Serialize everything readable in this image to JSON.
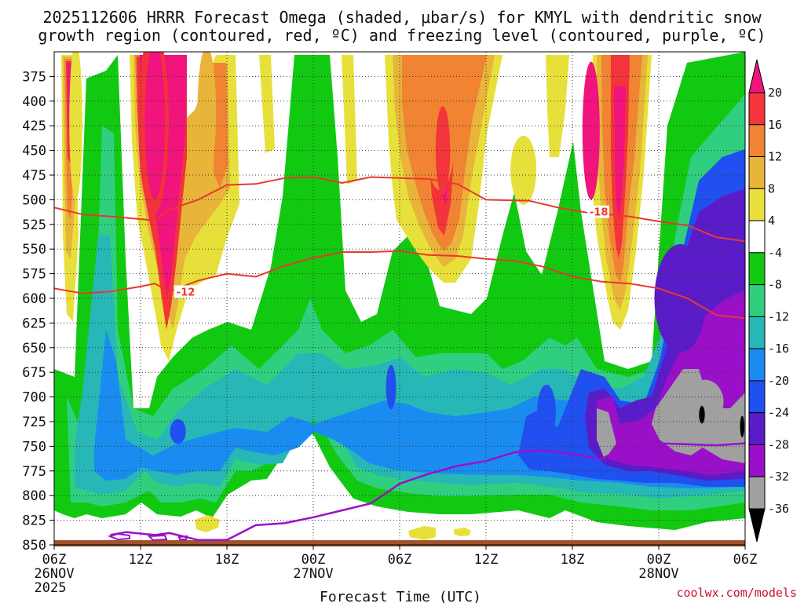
{
  "chart_data": {
    "type": "heatmap",
    "title_line1": "2025112606 HRRR Forecast Omega (shaded, μbar/s) for KMYL with dendritic snow",
    "title_line2": "growth region (contoured, red, ºC) and freezing level (contoured, purple, ºC)",
    "xlabel": "Forecast Time (UTC)",
    "credit": "coolwx.com/models",
    "x_ticks": [
      {
        "hour": 0,
        "label": "06Z",
        "date": "26NOV",
        "year": "2025"
      },
      {
        "hour": 6,
        "label": "12Z"
      },
      {
        "hour": 12,
        "label": "18Z"
      },
      {
        "hour": 18,
        "label": "00Z",
        "date": "27NOV"
      },
      {
        "hour": 24,
        "label": "06Z"
      },
      {
        "hour": 30,
        "label": "12Z"
      },
      {
        "hour": 36,
        "label": "18Z"
      },
      {
        "hour": 42,
        "label": "00Z",
        "date": "28NOV"
      },
      {
        "hour": 48,
        "label": "06Z"
      }
    ],
    "x_range_hours": [
      0,
      48
    ],
    "y_ticks_mb": [
      375,
      400,
      425,
      450,
      475,
      500,
      525,
      550,
      575,
      600,
      625,
      650,
      675,
      700,
      725,
      750,
      775,
      800,
      825,
      850
    ],
    "y_range_mb": [
      350,
      850
    ],
    "colorbar": {
      "levels": [
        -36,
        -32,
        -28,
        -24,
        -20,
        -16,
        -12,
        -8,
        -4,
        4,
        8,
        12,
        16,
        20
      ],
      "labels": [
        "20",
        "16",
        "12",
        "8",
        "4",
        "-4",
        "-8",
        "-12",
        "-16",
        "-20",
        "-24",
        "-28",
        "-32",
        "-36"
      ],
      "colors_top_to_bottom": [
        "#f0147c",
        "#f3343a",
        "#f08432",
        "#e8b43a",
        "#e8e03a",
        "#ffffff",
        "#12c912",
        "#30cf80",
        "#27b7b7",
        "#1a8cf0",
        "#2050f0",
        "#5a1cc8",
        "#9a10c8",
        "#a0a0a0",
        "#000000"
      ]
    },
    "omega_fields": [
      {
        "name": "ascent-col-1",
        "color": "#e8e03a",
        "t": 1.5,
        "p": 420,
        "dt": 0.9,
        "dp": 160
      },
      {
        "name": "ascent-col-2",
        "color": "#f3343a",
        "t": 6.9,
        "p": 420,
        "dt": 2.1,
        "dp": 190
      },
      {
        "name": "ascent-col-3",
        "color": "#f0147c",
        "t": 7.0,
        "p": 420,
        "dt": 1.4,
        "dp": 160
      },
      {
        "name": "ascent-col-4",
        "color": "#e8b43a",
        "t": 10.6,
        "p": 410,
        "dt": 1.3,
        "dp": 130
      },
      {
        "name": "ascent-col-5",
        "color": "#f08432",
        "t": 26.8,
        "p": 430,
        "dt": 2.2,
        "dp": 120
      },
      {
        "name": "ascent-col-6",
        "color": "#f3343a",
        "t": 27.0,
        "p": 450,
        "dt": 1.0,
        "dp": 90
      },
      {
        "name": "ascent-col-7",
        "color": "#f0147c",
        "t": 37.3,
        "p": 430,
        "dt": 1.2,
        "dp": 140
      },
      {
        "name": "ascent-col-8",
        "color": "#e8e03a",
        "t": 32.6,
        "p": 470,
        "dt": 1.8,
        "dp": 70
      },
      {
        "name": "descent-core-1",
        "color": "#2050f0",
        "t": 8.6,
        "p": 735,
        "dt": 1.1,
        "dp": 25
      },
      {
        "name": "descent-core-2",
        "color": "#2050f0",
        "t": 23.4,
        "p": 690,
        "dt": 0.7,
        "dp": 45
      },
      {
        "name": "descent-core-3",
        "color": "#2050f0",
        "t": 34.2,
        "p": 715,
        "dt": 1.3,
        "dp": 55
      },
      {
        "name": "descent-core-4",
        "color": "#5a1cc8",
        "t": 43.5,
        "p": 600,
        "dt": 3.6,
        "dp": 110
      },
      {
        "name": "descent-core-5",
        "color": "#a0a0a0",
        "t": 45.2,
        "p": 705,
        "dt": 2.6,
        "dp": 45
      },
      {
        "name": "descent-core-6",
        "color": "#000000",
        "t": 45.0,
        "p": 718,
        "dt": 0.4,
        "dp": 18
      },
      {
        "name": "descent-core-7",
        "color": "#000000",
        "t": 47.8,
        "p": 730,
        "dt": 0.3,
        "dp": 22
      }
    ],
    "dgz_contours": [
      {
        "label": "-18",
        "color": "#e8382f",
        "label_at": {
          "hour": 37.2,
          "mb": 513
        },
        "points": [
          [
            0,
            508
          ],
          [
            2,
            515
          ],
          [
            4,
            517
          ],
          [
            7,
            521
          ],
          [
            8,
            510
          ],
          [
            10,
            500
          ],
          [
            12,
            485
          ],
          [
            14,
            484
          ],
          [
            16,
            478
          ],
          [
            18,
            477
          ],
          [
            20,
            483
          ],
          [
            22,
            477
          ],
          [
            24,
            478
          ],
          [
            26,
            479
          ],
          [
            28,
            484
          ],
          [
            30,
            500
          ],
          [
            33,
            501
          ],
          [
            35,
            508
          ],
          [
            37,
            513
          ],
          [
            40,
            517
          ],
          [
            42,
            522
          ],
          [
            44,
            526
          ],
          [
            46,
            538
          ],
          [
            48,
            542
          ]
        ]
      },
      {
        "label": "-12",
        "color": "#e8382f",
        "label_at": {
          "hour": 8.5,
          "mb": 594
        },
        "points": [
          [
            0,
            590
          ],
          [
            2,
            595
          ],
          [
            4,
            593
          ],
          [
            6,
            588
          ],
          [
            7,
            585
          ],
          [
            8,
            593
          ],
          [
            10,
            582
          ],
          [
            12,
            575
          ],
          [
            14,
            578
          ],
          [
            16,
            567
          ],
          [
            18,
            559
          ],
          [
            20,
            553
          ],
          [
            22,
            553
          ],
          [
            24,
            552
          ],
          [
            26,
            556
          ],
          [
            28,
            557
          ],
          [
            30,
            560
          ],
          [
            32,
            562
          ],
          [
            34,
            568
          ],
          [
            36,
            578
          ],
          [
            38,
            583
          ],
          [
            40,
            585
          ],
          [
            42,
            590
          ],
          [
            44,
            600
          ],
          [
            46,
            617
          ],
          [
            48,
            620
          ]
        ]
      }
    ],
    "freezing_level": {
      "label": "0",
      "color": "#9a10c8",
      "points": [
        [
          3.9,
          840
        ],
        [
          5,
          837
        ],
        [
          7,
          840
        ],
        [
          8,
          838
        ],
        [
          10,
          845
        ],
        [
          12,
          845
        ],
        [
          14,
          830
        ],
        [
          16,
          828
        ],
        [
          18,
          822
        ],
        [
          20,
          815
        ],
        [
          22,
          808
        ],
        [
          24,
          788
        ],
        [
          26,
          778
        ],
        [
          28,
          770
        ],
        [
          30,
          765
        ],
        [
          32,
          756
        ],
        [
          34,
          754
        ],
        [
          36,
          758
        ],
        [
          38,
          763
        ],
        [
          40,
          748
        ],
        [
          42,
          747
        ],
        [
          44,
          748
        ],
        [
          46,
          749
        ],
        [
          48,
          747
        ]
      ]
    },
    "terrain": {
      "color": "#a0522d",
      "surface_mb": 853
    }
  }
}
